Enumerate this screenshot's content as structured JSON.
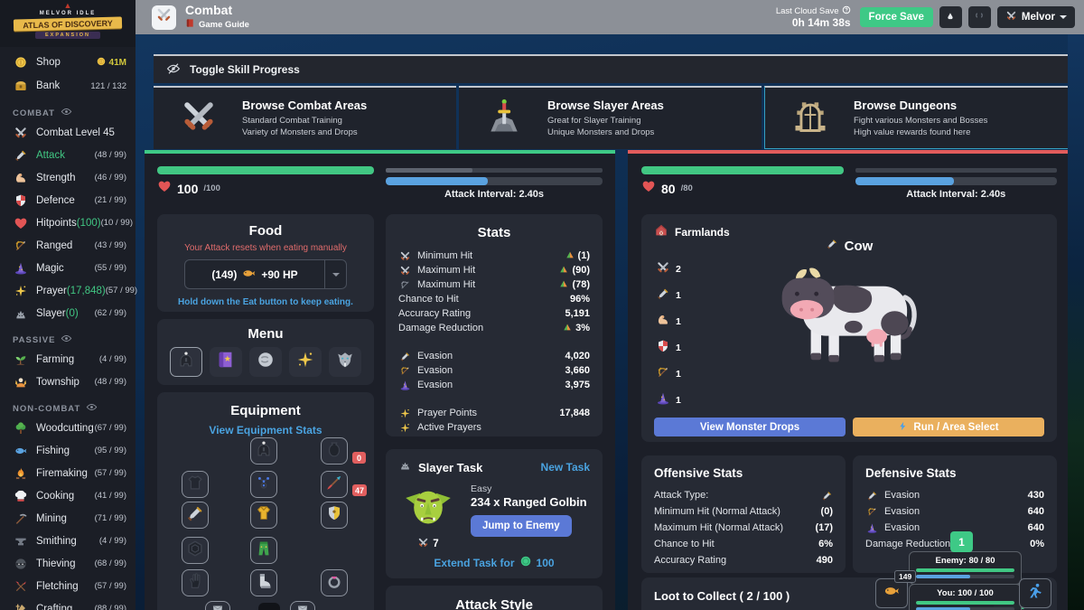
{
  "logo": {
    "title": "MELVOR IDLE",
    "banner": "ATLAS OF DISCOVERY",
    "sub": "EXPANSION"
  },
  "topbar": {
    "title": "Combat",
    "guide": "Game Guide",
    "cloud_label": "Last Cloud Save",
    "cloud_time": "0h 14m 38s",
    "force_save": "Force Save",
    "world": "Melvor"
  },
  "sidebar": {
    "shop": {
      "label": "Shop",
      "value": "41M"
    },
    "bank": {
      "label": "Bank",
      "value": "121 / 132"
    },
    "sections": [
      {
        "header": "COMBAT",
        "items": [
          {
            "icon": "crossed_swords",
            "label": "Combat Level 45",
            "value": ""
          },
          {
            "icon": "sword",
            "label": "Attack",
            "value": "(48 / 99)",
            "active": true
          },
          {
            "icon": "muscle",
            "label": "Strength",
            "value": "(46 / 99)"
          },
          {
            "icon": "shield",
            "label": "Defence",
            "value": "(21 / 99)"
          },
          {
            "icon": "heart",
            "label": "Hitpoints",
            "extra": "(100)",
            "value": "(10 / 99)"
          },
          {
            "icon": "bow",
            "label": "Ranged",
            "value": "(43 / 99)"
          },
          {
            "icon": "hat",
            "label": "Magic",
            "value": "(55 / 99)"
          },
          {
            "icon": "sparkle",
            "label": "Prayer",
            "extra": "(17,848)",
            "value": "(57 / 99)"
          },
          {
            "icon": "slayer",
            "label": "Slayer",
            "extra": "(0)",
            "value": "(62 / 99)"
          }
        ]
      },
      {
        "header": "PASSIVE",
        "items": [
          {
            "icon": "farming",
            "label": "Farming",
            "value": "(4 / 99)"
          },
          {
            "icon": "township",
            "label": "Township",
            "value": "(48 / 99)"
          }
        ]
      },
      {
        "header": "NON-COMBAT",
        "items": [
          {
            "icon": "tree",
            "label": "Woodcutting",
            "value": "(67 / 99)"
          },
          {
            "icon": "fish_blue",
            "label": "Fishing",
            "value": "(95 / 99)"
          },
          {
            "icon": "flame",
            "label": "Firemaking",
            "value": "(57 / 99)"
          },
          {
            "icon": "chef",
            "label": "Cooking",
            "value": "(41 / 99)"
          },
          {
            "icon": "pickaxe",
            "label": "Mining",
            "value": "(71 / 99)"
          },
          {
            "icon": "anvil",
            "label": "Smithing",
            "value": "(4 / 99)"
          },
          {
            "icon": "thief",
            "label": "Thieving",
            "value": "(68 / 99)"
          },
          {
            "icon": "fletch",
            "label": "Fletching",
            "value": "(57 / 99)"
          },
          {
            "icon": "craft",
            "label": "Crafting",
            "value": "(88 / 99)"
          }
        ]
      }
    ]
  },
  "toggle_bar": {
    "label": "Toggle Skill Progress"
  },
  "browse_cards": [
    {
      "icon": "crossed_swords",
      "title": "Browse Combat Areas",
      "line1": "Standard Combat Training",
      "line2": "Variety of Monsters and Drops"
    },
    {
      "icon": "sword_stone",
      "title": "Browse Slayer Areas",
      "line1": "Great for Slayer Training",
      "line2": "Unique Monsters and Drops"
    },
    {
      "icon": "dungeon",
      "title": "Browse Dungeons",
      "line1": "Fight various Monsters and Bosses",
      "line2": "High value rewards found here",
      "highlighted": true
    }
  ],
  "player": {
    "hp": "100",
    "hp_max": "/100",
    "interval_label": "Attack Interval: 2.40s",
    "hp_pct": 100,
    "interval_pct": 47,
    "xp_pct": 40
  },
  "enemy_bar": {
    "hp": "80",
    "hp_max": "/80",
    "interval_label": "Attack Interval: 2.40s",
    "hp_pct": 100,
    "interval_pct": 49,
    "xp_pct": 0
  },
  "food": {
    "title": "Food",
    "warning": "Your Attack resets when eating manually",
    "qty": "(149)",
    "heal": "+90 HP",
    "tip": "Hold down the Eat button to keep eating."
  },
  "menu": {
    "title": "Menu"
  },
  "equipment": {
    "title": "Equipment",
    "link": "View Equipment Stats",
    "quiver_badge": "0",
    "arrow_badge": "47"
  },
  "stats": {
    "title": "Stats",
    "rows": [
      {
        "icon": "crossed_swords",
        "label": "Minimum Hit",
        "buff": true,
        "value": "(1)"
      },
      {
        "icon": "crossed_swords",
        "label": "Maximum Hit",
        "buff": true,
        "value": "(90)"
      },
      {
        "icon": "bow_dim",
        "label": "Maximum Hit",
        "buff": true,
        "value": "(78)"
      },
      {
        "label": "Chance to Hit",
        "value": "96%"
      },
      {
        "label": "Accuracy Rating",
        "value": "5,191"
      },
      {
        "label": "Damage Reduction",
        "buff": true,
        "value": "3%"
      },
      {
        "spacer": true
      },
      {
        "icon": "sword",
        "label": "Evasion",
        "value": "4,020"
      },
      {
        "icon": "bow",
        "label": "Evasion",
        "value": "3,660"
      },
      {
        "icon": "hat",
        "label": "Evasion",
        "value": "3,975"
      },
      {
        "spacer": true
      },
      {
        "icon": "sparkle",
        "label": "Prayer Points",
        "value": "17,848"
      },
      {
        "icon": "sparkle",
        "label": "Active Prayers",
        "value": ""
      }
    ]
  },
  "slayer_task": {
    "title": "Slayer Task",
    "new_task": "New Task",
    "difficulty": "Easy",
    "target": "234 x Ranged Golbin",
    "jump_btn": "Jump to Enemy",
    "kill_count": "7",
    "extend_label": "Extend Task for",
    "extend_cost": "100"
  },
  "attack_style": {
    "title": "Attack Style"
  },
  "enemy": {
    "area": "Farmlands",
    "name": "Cow",
    "modifiers": [
      {
        "icon": "crossed_swords",
        "value": "2"
      },
      {
        "icon": "sword",
        "value": "1"
      },
      {
        "icon": "muscle",
        "value": "1"
      },
      {
        "icon": "shield",
        "value": "1"
      },
      {
        "icon": "bow",
        "value": "1"
      },
      {
        "icon": "hat",
        "value": "1"
      }
    ],
    "drops_btn": "View Monster Drops",
    "run_btn": "Run / Area Select"
  },
  "off</p>ensive_placeholder": null,
  "offensive": {
    "title": "Offensive Stats",
    "rows": [
      {
        "label": "Attack Type:",
        "icon_value": "sword"
      },
      {
        "label": "Minimum Hit (Normal Attack)",
        "value": "(0)"
      },
      {
        "label": "Maximum Hit (Normal Attack)",
        "value": "(17)"
      },
      {
        "label": "Chance to Hit",
        "value": "6%"
      },
      {
        "label": "Accuracy Rating",
        "value": "490"
      }
    ]
  },
  "defensive": {
    "title": "Defensive Stats",
    "rows": [
      {
        "icon": "sword",
        "label": "Evasion",
        "value": "430"
      },
      {
        "icon": "bow",
        "label": "Evasion",
        "value": "640"
      },
      {
        "icon": "hat",
        "label": "Evasion",
        "value": "640"
      },
      {
        "label": "Damage Reduction",
        "value": "0%"
      }
    ]
  },
  "loot": {
    "title": "Loot to Collect ( 2 / 100 )"
  },
  "minibar": {
    "badge": "1",
    "enemy_label": "Enemy: 80 / 80",
    "you_label": "You: 100 / 100",
    "food_qty": "149",
    "enemy_hp_pct": 100,
    "enemy_interval_pct": 55,
    "you_hp_pct": 100,
    "you_interval_pct": 55
  },
  "colors": {
    "green": "#3ec986",
    "hp_green": "#41c783",
    "blue_btn": "#5b79d6",
    "link_blue": "#4aa3e0",
    "interval_blue": "#5aa2e0",
    "orange": "#eab05e",
    "red": "#e25c5c",
    "gold": "#f0c84b"
  }
}
